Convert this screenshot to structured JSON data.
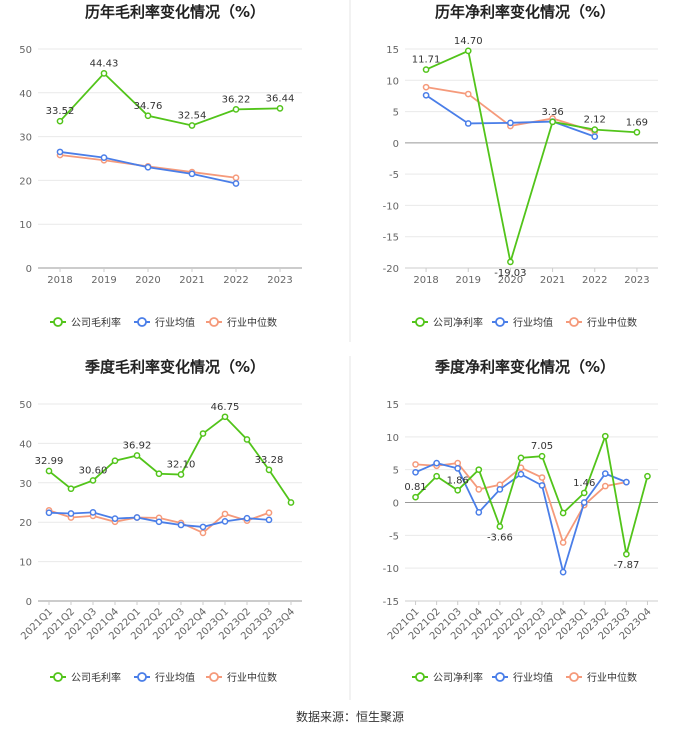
{
  "footer": "数据来源：恒生聚源",
  "chart_data": [
    {
      "type": "line",
      "title": "历年毛利率变化情况（%）",
      "categories": [
        "2018",
        "2019",
        "2020",
        "2021",
        "2022",
        "2023"
      ],
      "ylim": [
        0,
        50
      ],
      "yticks": [
        0,
        10,
        20,
        30,
        40,
        50
      ],
      "legend_position": "bottom",
      "series": [
        {
          "name": "公司毛利率",
          "color": "#52c41a",
          "values": [
            33.52,
            44.43,
            34.76,
            32.54,
            36.22,
            36.44
          ],
          "labels": [
            "33.52",
            "44.43",
            "34.76",
            "32.54",
            "36.22",
            "36.44"
          ]
        },
        {
          "name": "行业均值",
          "color": "#4a7ee8",
          "values": [
            26.5,
            25.2,
            23.0,
            21.5,
            19.3,
            null
          ],
          "labels": []
        },
        {
          "name": "行业中位数",
          "color": "#f59a7b",
          "values": [
            25.8,
            24.6,
            23.2,
            21.9,
            20.6,
            null
          ],
          "labels": []
        }
      ]
    },
    {
      "type": "line",
      "title": "历年净利率变化情况（%）",
      "categories": [
        "2018",
        "2019",
        "2020",
        "2021",
        "2022",
        "2023"
      ],
      "ylim": [
        -20,
        15
      ],
      "yticks": [
        -20,
        -15,
        -10,
        -5,
        0,
        5,
        10,
        15
      ],
      "legend_position": "bottom",
      "series": [
        {
          "name": "公司净利率",
          "color": "#52c41a",
          "values": [
            11.71,
            14.7,
            -19.03,
            3.36,
            2.12,
            1.69
          ],
          "labels": [
            "11.71",
            "14.70",
            "-19.03",
            "3.36",
            "2.12",
            "1.69"
          ]
        },
        {
          "name": "行业均值",
          "color": "#4a7ee8",
          "values": [
            7.6,
            3.1,
            3.2,
            3.4,
            1.0,
            null
          ],
          "labels": []
        },
        {
          "name": "行业中位数",
          "color": "#f59a7b",
          "values": [
            8.9,
            7.8,
            2.7,
            3.9,
            1.8,
            null
          ],
          "labels": []
        }
      ]
    },
    {
      "type": "line",
      "title": "季度毛利率变化情况（%）",
      "categories": [
        "2021Q1",
        "2021Q2",
        "2021Q3",
        "2021Q4",
        "2022Q1",
        "2022Q2",
        "2022Q3",
        "2022Q4",
        "2023Q1",
        "2023Q2",
        "2023Q3",
        "2023Q4"
      ],
      "ylim": [
        0,
        50
      ],
      "yticks": [
        0,
        10,
        20,
        30,
        40,
        50
      ],
      "legend_position": "bottom",
      "series": [
        {
          "name": "公司毛利率",
          "color": "#52c41a",
          "values": [
            32.99,
            28.5,
            30.6,
            35.6,
            36.92,
            32.3,
            32.1,
            42.5,
            46.75,
            41.0,
            33.28,
            25.0
          ],
          "labels": [
            "32.99",
            "",
            "30.60",
            "",
            "36.92",
            "",
            "32.10",
            "",
            "46.75",
            "",
            "33.28",
            ""
          ]
        },
        {
          "name": "行业均值",
          "color": "#4a7ee8",
          "values": [
            22.4,
            22.2,
            22.5,
            20.9,
            21.2,
            20.1,
            19.3,
            18.8,
            20.2,
            21.0,
            20.6,
            null
          ],
          "labels": []
        },
        {
          "name": "行业中位数",
          "color": "#f59a7b",
          "values": [
            23.0,
            21.2,
            21.6,
            20.1,
            21.2,
            21.1,
            19.8,
            17.3,
            22.1,
            20.4,
            22.4,
            null
          ],
          "labels": []
        }
      ]
    },
    {
      "type": "line",
      "title": "季度净利率变化情况（%）",
      "categories": [
        "2021Q1",
        "2021Q2",
        "2021Q3",
        "2021Q4",
        "2022Q1",
        "2022Q2",
        "2022Q3",
        "2022Q4",
        "2023Q1",
        "2023Q2",
        "2023Q3",
        "2023Q4"
      ],
      "ylim": [
        -15,
        15
      ],
      "yticks": [
        -15,
        -10,
        -5,
        0,
        5,
        10,
        15
      ],
      "legend_position": "bottom",
      "series": [
        {
          "name": "公司净利率",
          "color": "#52c41a",
          "values": [
            0.81,
            4.0,
            1.86,
            5.0,
            -3.66,
            6.8,
            7.05,
            -1.6,
            1.46,
            10.1,
            -7.87,
            4.0
          ],
          "labels": [
            "0.81",
            "",
            "1.86",
            "",
            "-3.66",
            "",
            "7.05",
            "",
            "1.46",
            "",
            "-7.87",
            ""
          ]
        },
        {
          "name": "行业均值",
          "color": "#4a7ee8",
          "values": [
            4.6,
            6.0,
            5.2,
            -1.5,
            2.0,
            4.3,
            2.6,
            -10.6,
            0.0,
            4.4,
            3.1,
            null
          ],
          "labels": []
        },
        {
          "name": "行业中位数",
          "color": "#f59a7b",
          "values": [
            5.8,
            5.6,
            6.0,
            2.0,
            2.7,
            5.3,
            3.8,
            -6.1,
            -0.4,
            2.5,
            3.1,
            null
          ],
          "labels": []
        }
      ]
    }
  ]
}
